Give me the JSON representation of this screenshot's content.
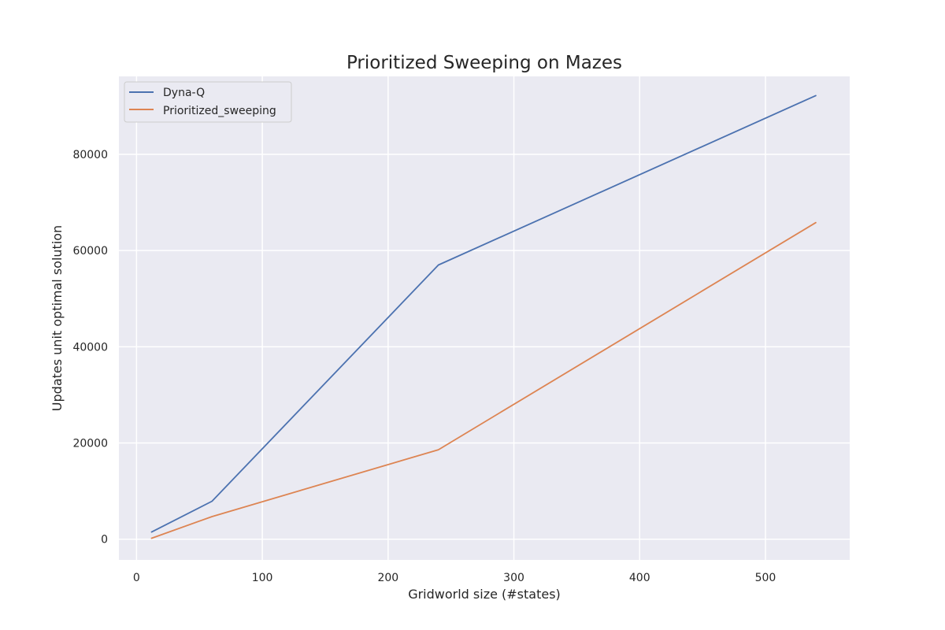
{
  "chart_data": {
    "type": "line",
    "title": "Prioritized Sweeping on Mazes",
    "xlabel": "Gridworld size (#states)",
    "ylabel": "Updates unit optimal solution",
    "xlim": [
      -14,
      567
    ],
    "ylim": [
      -4300,
      96200
    ],
    "xticks": [
      0,
      100,
      200,
      300,
      400,
      500
    ],
    "yticks": [
      0,
      20000,
      40000,
      60000,
      80000
    ],
    "grid": true,
    "legend": "top-left",
    "background": "#eaeaf2",
    "series": [
      {
        "name": "Dyna-Q",
        "color": "#4c72b0",
        "x": [
          12,
          60,
          240,
          540
        ],
        "y": [
          1500,
          7900,
          57000,
          92200
        ]
      },
      {
        "name": "Prioritized_sweeping",
        "color": "#dd8452",
        "x": [
          12,
          60,
          240,
          540
        ],
        "y": [
          200,
          4700,
          18600,
          65800
        ]
      }
    ]
  }
}
